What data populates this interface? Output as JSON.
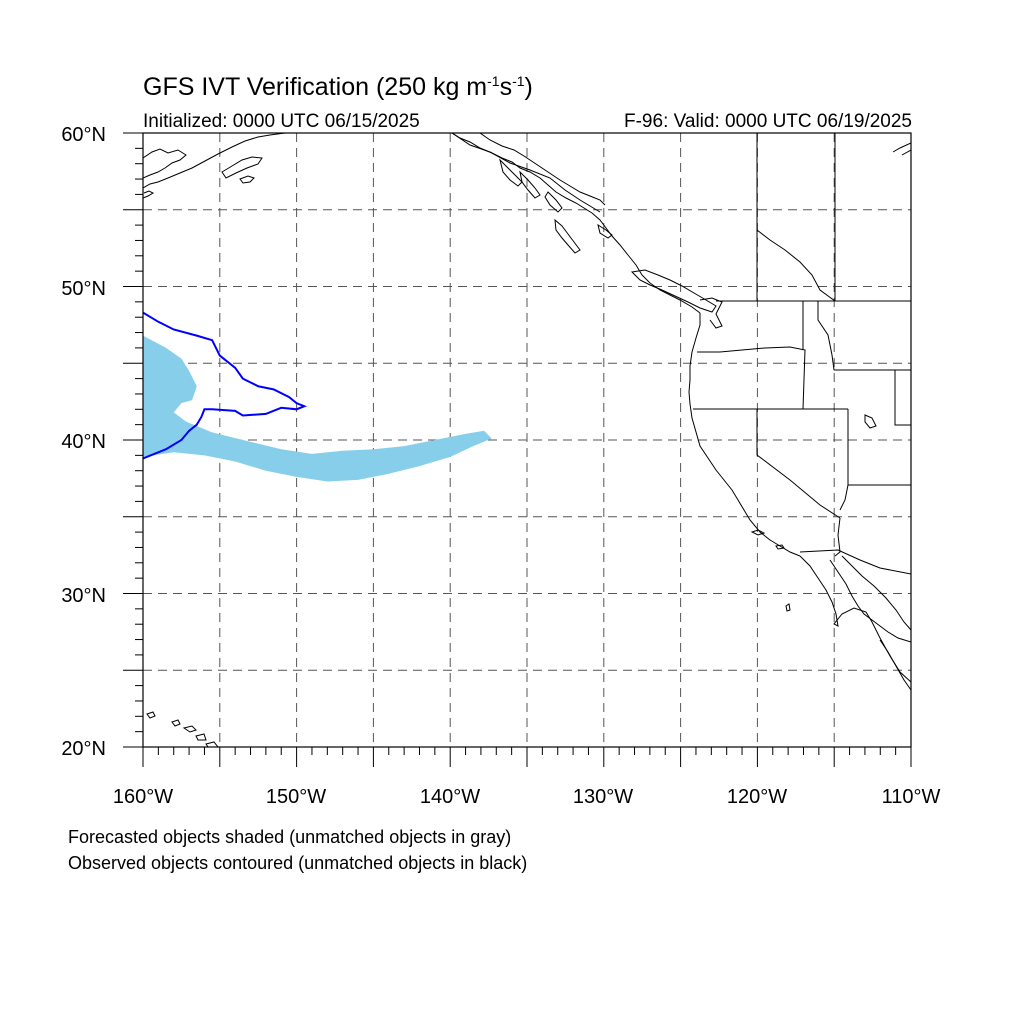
{
  "header": {
    "title": "GFS IVT Verification (250 kg m",
    "title_exp1": "-1",
    "title_mid": "s",
    "title_exp2": "-1",
    "title_end": ")",
    "initialized": "Initialized: 0000 UTC 06/15/2025",
    "valid": "F-96: Valid: 0000 UTC 06/19/2025"
  },
  "axes": {
    "lat_labels": [
      "60°N",
      "50°N",
      "40°N",
      "30°N",
      "20°N"
    ],
    "lon_labels": [
      "160°W",
      "150°W",
      "140°W",
      "130°W",
      "120°W",
      "110°W"
    ],
    "lat_range": [
      20,
      60
    ],
    "lon_range": [
      -160,
      -110
    ],
    "gridlines": "dashed, every 5 degrees"
  },
  "legend": {
    "line1": "Forecasted objects shaded (unmatched objects in gray)",
    "line2": "Observed objects contoured (unmatched objects in black)"
  },
  "colors": {
    "forecast_fill": "#87ceeb",
    "observed_contour": "#0000ff",
    "coastline": "#000000",
    "grid": "#555555"
  },
  "objects": {
    "forecast": {
      "matched": true,
      "polygon_lonlat": [
        [
          -160,
          46.8
        ],
        [
          -158.5,
          46
        ],
        [
          -157.5,
          45.3
        ],
        [
          -157,
          44.5
        ],
        [
          -156.5,
          43.5
        ],
        [
          -156.8,
          42.6
        ],
        [
          -157.5,
          42.4
        ],
        [
          -158,
          41.8
        ],
        [
          -157.2,
          41.2
        ],
        [
          -155.5,
          40.5
        ],
        [
          -153.5,
          40
        ],
        [
          -151,
          39.4
        ],
        [
          -149,
          39.1
        ],
        [
          -147,
          39.3
        ],
        [
          -145,
          39.4
        ],
        [
          -143,
          39.6
        ],
        [
          -141,
          40
        ],
        [
          -139,
          40.4
        ],
        [
          -137.8,
          40.6
        ],
        [
          -137.3,
          40.1
        ],
        [
          -138.5,
          39.6
        ],
        [
          -140,
          38.9
        ],
        [
          -142,
          38.3
        ],
        [
          -144,
          37.8
        ],
        [
          -146,
          37.4
        ],
        [
          -148,
          37.3
        ],
        [
          -150,
          37.6
        ],
        [
          -152,
          38
        ],
        [
          -154,
          38.6
        ],
        [
          -156,
          39
        ],
        [
          -158,
          39.2
        ],
        [
          -160,
          38.9
        ]
      ]
    },
    "observed": {
      "matched": true,
      "contour_lonlat": [
        [
          -160,
          48.3
        ],
        [
          -159,
          47.7
        ],
        [
          -158,
          47.2
        ],
        [
          -156.5,
          46.8
        ],
        [
          -155.5,
          46.5
        ],
        [
          -155,
          45.5
        ],
        [
          -154,
          44.7
        ],
        [
          -153.5,
          44
        ],
        [
          -152.5,
          43.5
        ],
        [
          -151.5,
          43.3
        ],
        [
          -150.5,
          42.8
        ],
        [
          -150,
          42.4
        ],
        [
          -149.5,
          42.2
        ],
        [
          -150,
          42
        ],
        [
          -151,
          42.1
        ],
        [
          -152,
          41.7
        ],
        [
          -153.5,
          41.6
        ],
        [
          -154,
          41.9
        ],
        [
          -155.5,
          42
        ],
        [
          -156,
          42
        ],
        [
          -156.2,
          41.5
        ],
        [
          -156.5,
          41
        ],
        [
          -157,
          40.6
        ],
        [
          -157.5,
          40
        ],
        [
          -158.5,
          39.4
        ],
        [
          -160,
          38.8
        ]
      ]
    }
  }
}
